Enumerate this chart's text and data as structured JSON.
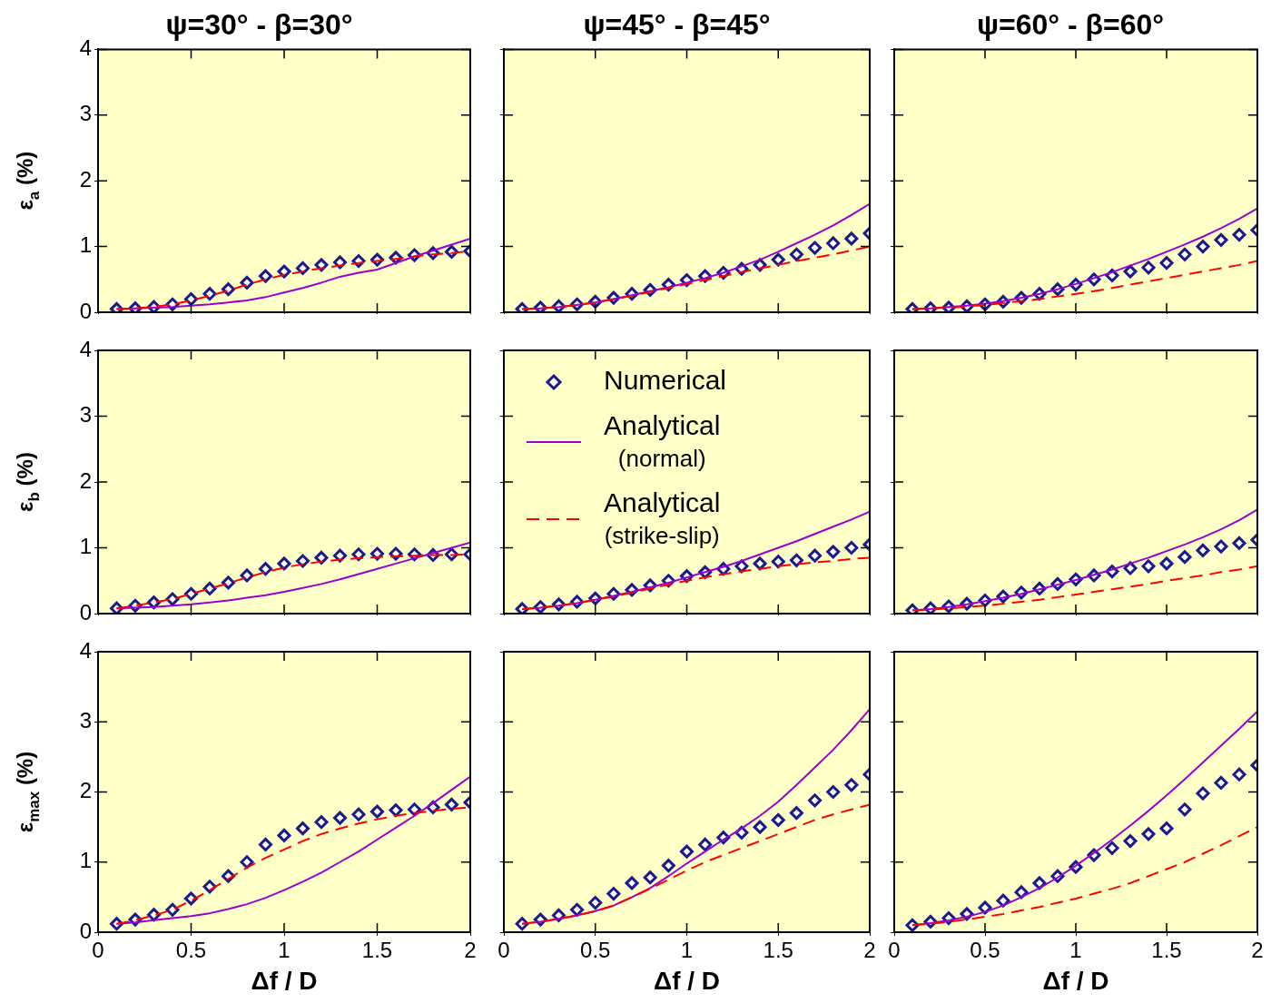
{
  "chart_data": [
    {
      "type": "line",
      "title": "ψ=30° - β=30°",
      "ylabel": "ε$_{a}$ (%)",
      "xlim": [
        0,
        2
      ],
      "xticks": [
        0,
        0.5,
        1,
        1.5,
        2
      ],
      "ylim": [
        0,
        4
      ],
      "yticks": [
        0,
        1,
        2,
        3,
        4
      ],
      "tick_labels": "y",
      "grid": false,
      "legend": false,
      "x": [
        0.1,
        0.2,
        0.3,
        0.4,
        0.5,
        0.6,
        0.7,
        0.8,
        0.9,
        1.0,
        1.1,
        1.2,
        1.3,
        1.4,
        1.5,
        1.6,
        1.7,
        1.8,
        1.9,
        2.0
      ],
      "series": [
        {
          "type": "scatter",
          "marker": "diamond",
          "color": "#1a1a8c",
          "values": [
            0.05,
            0.06,
            0.08,
            0.12,
            0.2,
            0.28,
            0.35,
            0.45,
            0.55,
            0.62,
            0.67,
            0.72,
            0.76,
            0.78,
            0.8,
            0.83,
            0.87,
            0.9,
            0.92,
            0.93
          ]
        },
        {
          "type": "line",
          "marker": "none",
          "line_style": "solid",
          "color": "#9b00d3",
          "values": [
            0.05,
            0.06,
            0.07,
            0.08,
            0.1,
            0.12,
            0.15,
            0.18,
            0.23,
            0.3,
            0.37,
            0.45,
            0.54,
            0.6,
            0.65,
            0.75,
            0.85,
            0.94,
            1.03,
            1.12
          ]
        },
        {
          "type": "line",
          "marker": "none",
          "line_style": "dashed",
          "color": "#ff0000",
          "values": [
            0.05,
            0.06,
            0.08,
            0.12,
            0.18,
            0.25,
            0.33,
            0.42,
            0.5,
            0.57,
            0.62,
            0.67,
            0.71,
            0.75,
            0.78,
            0.81,
            0.85,
            0.88,
            0.9,
            0.93
          ]
        }
      ]
    },
    {
      "type": "line",
      "title": "ψ=45° - β=45°",
      "xlim": [
        0,
        2
      ],
      "xticks": [
        0,
        0.5,
        1,
        1.5,
        2
      ],
      "ylim": [
        0,
        4
      ],
      "yticks": [
        0,
        1,
        2,
        3,
        4
      ],
      "tick_labels": false,
      "grid": false,
      "legend": false,
      "x": [
        0.1,
        0.2,
        0.3,
        0.4,
        0.5,
        0.6,
        0.7,
        0.8,
        0.9,
        1.0,
        1.1,
        1.2,
        1.3,
        1.4,
        1.5,
        1.6,
        1.7,
        1.8,
        1.9,
        2.0
      ],
      "series": [
        {
          "type": "scatter",
          "marker": "diamond",
          "color": "#1a1a8c",
          "values": [
            0.05,
            0.07,
            0.09,
            0.12,
            0.16,
            0.22,
            0.28,
            0.34,
            0.42,
            0.49,
            0.55,
            0.6,
            0.66,
            0.72,
            0.8,
            0.88,
            0.98,
            1.05,
            1.12,
            1.2
          ]
        },
        {
          "type": "line",
          "marker": "none",
          "line_style": "solid",
          "color": "#9b00d3",
          "values": [
            0.05,
            0.06,
            0.08,
            0.11,
            0.15,
            0.2,
            0.26,
            0.32,
            0.38,
            0.45,
            0.52,
            0.6,
            0.7,
            0.8,
            0.92,
            1.05,
            1.18,
            1.32,
            1.48,
            1.65
          ]
        },
        {
          "type": "line",
          "marker": "none",
          "line_style": "dashed",
          "color": "#ff0000",
          "values": [
            0.05,
            0.06,
            0.08,
            0.11,
            0.15,
            0.2,
            0.25,
            0.31,
            0.37,
            0.43,
            0.49,
            0.55,
            0.61,
            0.67,
            0.72,
            0.78,
            0.83,
            0.88,
            0.94,
            1.0
          ]
        }
      ]
    },
    {
      "type": "line",
      "title": "ψ=60° - β=60°",
      "xlim": [
        0,
        2
      ],
      "xticks": [
        0,
        0.5,
        1,
        1.5,
        2
      ],
      "ylim": [
        0,
        4
      ],
      "yticks": [
        0,
        1,
        2,
        3,
        4
      ],
      "tick_labels": false,
      "grid": false,
      "legend": false,
      "x": [
        0.1,
        0.2,
        0.3,
        0.4,
        0.5,
        0.6,
        0.7,
        0.8,
        0.9,
        1.0,
        1.1,
        1.2,
        1.3,
        1.4,
        1.5,
        1.6,
        1.7,
        1.8,
        1.9,
        2.0
      ],
      "series": [
        {
          "type": "scatter",
          "marker": "diamond",
          "color": "#1a1a8c",
          "values": [
            0.05,
            0.06,
            0.07,
            0.09,
            0.12,
            0.16,
            0.22,
            0.28,
            0.35,
            0.42,
            0.5,
            0.56,
            0.62,
            0.68,
            0.75,
            0.88,
            1.0,
            1.1,
            1.18,
            1.25
          ]
        },
        {
          "type": "line",
          "marker": "none",
          "line_style": "solid",
          "color": "#9b00d3",
          "values": [
            0.05,
            0.06,
            0.08,
            0.1,
            0.13,
            0.17,
            0.22,
            0.28,
            0.35,
            0.43,
            0.52,
            0.61,
            0.71,
            0.81,
            0.92,
            1.03,
            1.15,
            1.28,
            1.42,
            1.58
          ]
        },
        {
          "type": "line",
          "marker": "none",
          "line_style": "dashed",
          "color": "#ff0000",
          "values": [
            0.05,
            0.06,
            0.07,
            0.09,
            0.11,
            0.14,
            0.17,
            0.2,
            0.24,
            0.28,
            0.32,
            0.37,
            0.42,
            0.47,
            0.52,
            0.57,
            0.62,
            0.67,
            0.72,
            0.78
          ]
        }
      ]
    },
    {
      "type": "line",
      "ylabel": "ε$_{b}$ (%)",
      "xlim": [
        0,
        2
      ],
      "xticks": [
        0,
        0.5,
        1,
        1.5,
        2
      ],
      "ylim": [
        0,
        4
      ],
      "yticks": [
        0,
        1,
        2,
        3,
        4
      ],
      "tick_labels": "y",
      "grid": false,
      "legend": false,
      "x": [
        0.1,
        0.2,
        0.3,
        0.4,
        0.5,
        0.6,
        0.7,
        0.8,
        0.9,
        1.0,
        1.1,
        1.2,
        1.3,
        1.4,
        1.5,
        1.6,
        1.7,
        1.8,
        1.9,
        2.0
      ],
      "series": [
        {
          "type": "scatter",
          "marker": "diamond",
          "color": "#1a1a8c",
          "values": [
            0.08,
            0.12,
            0.17,
            0.22,
            0.3,
            0.38,
            0.47,
            0.58,
            0.68,
            0.76,
            0.8,
            0.85,
            0.88,
            0.9,
            0.91,
            0.91,
            0.9,
            0.89,
            0.9,
            0.9
          ]
        },
        {
          "type": "line",
          "marker": "none",
          "line_style": "solid",
          "color": "#9b00d3",
          "values": [
            0.08,
            0.09,
            0.1,
            0.12,
            0.14,
            0.17,
            0.2,
            0.24,
            0.28,
            0.33,
            0.39,
            0.45,
            0.52,
            0.6,
            0.68,
            0.76,
            0.84,
            0.92,
            1.0,
            1.08
          ]
        },
        {
          "type": "line",
          "marker": "none",
          "line_style": "dashed",
          "color": "#ff0000",
          "values": [
            0.08,
            0.12,
            0.17,
            0.22,
            0.3,
            0.38,
            0.46,
            0.55,
            0.63,
            0.7,
            0.75,
            0.79,
            0.82,
            0.84,
            0.86,
            0.87,
            0.88,
            0.89,
            0.89,
            0.9
          ]
        }
      ]
    },
    {
      "type": "line",
      "xlim": [
        0,
        2
      ],
      "xticks": [
        0,
        0.5,
        1,
        1.5,
        2
      ],
      "ylim": [
        0,
        4
      ],
      "yticks": [
        0,
        1,
        2,
        3,
        4
      ],
      "tick_labels": false,
      "grid": false,
      "legend": "top",
      "x": [
        0.1,
        0.2,
        0.3,
        0.4,
        0.5,
        0.6,
        0.7,
        0.8,
        0.9,
        1.0,
        1.1,
        1.2,
        1.3,
        1.4,
        1.5,
        1.6,
        1.7,
        1.8,
        1.9,
        2.0
      ],
      "series": [
        {
          "type": "scatter",
          "name": "Numerical",
          "marker": "diamond",
          "color": "#1a1a8c",
          "values": [
            0.07,
            0.1,
            0.14,
            0.18,
            0.23,
            0.3,
            0.36,
            0.43,
            0.5,
            0.57,
            0.63,
            0.68,
            0.72,
            0.76,
            0.79,
            0.81,
            0.88,
            0.94,
            1.0,
            1.05
          ]
        },
        {
          "type": "line",
          "name": "Analytical (normal)",
          "marker": "none",
          "line_style": "solid",
          "color": "#9b00d3",
          "values": [
            0.07,
            0.09,
            0.12,
            0.16,
            0.21,
            0.27,
            0.33,
            0.4,
            0.47,
            0.55,
            0.63,
            0.71,
            0.8,
            0.9,
            1.0,
            1.1,
            1.21,
            1.32,
            1.43,
            1.55
          ]
        },
        {
          "type": "line",
          "name": "Analytical (strike-slip)",
          "marker": "none",
          "line_style": "dashed",
          "color": "#ff0000",
          "values": [
            0.07,
            0.09,
            0.12,
            0.16,
            0.21,
            0.26,
            0.32,
            0.38,
            0.44,
            0.5,
            0.55,
            0.6,
            0.64,
            0.68,
            0.72,
            0.75,
            0.78,
            0.8,
            0.83,
            0.85
          ]
        }
      ]
    },
    {
      "type": "line",
      "xlim": [
        0,
        2
      ],
      "xticks": [
        0,
        0.5,
        1,
        1.5,
        2
      ],
      "ylim": [
        0,
        4
      ],
      "yticks": [
        0,
        1,
        2,
        3,
        4
      ],
      "tick_labels": false,
      "grid": false,
      "legend": false,
      "x": [
        0.1,
        0.2,
        0.3,
        0.4,
        0.5,
        0.6,
        0.7,
        0.8,
        0.9,
        1.0,
        1.1,
        1.2,
        1.3,
        1.4,
        1.5,
        1.6,
        1.7,
        1.8,
        1.9,
        2.0
      ],
      "series": [
        {
          "type": "scatter",
          "marker": "diamond",
          "color": "#1a1a8c",
          "values": [
            0.05,
            0.08,
            0.11,
            0.15,
            0.2,
            0.26,
            0.32,
            0.38,
            0.45,
            0.52,
            0.58,
            0.64,
            0.69,
            0.72,
            0.76,
            0.86,
            0.96,
            1.02,
            1.07,
            1.12
          ]
        },
        {
          "type": "line",
          "marker": "none",
          "line_style": "solid",
          "color": "#9b00d3",
          "values": [
            0.05,
            0.07,
            0.1,
            0.14,
            0.19,
            0.24,
            0.3,
            0.37,
            0.44,
            0.51,
            0.59,
            0.67,
            0.76,
            0.85,
            0.95,
            1.05,
            1.16,
            1.28,
            1.42,
            1.58
          ]
        },
        {
          "type": "line",
          "marker": "none",
          "line_style": "dashed",
          "color": "#ff0000",
          "values": [
            0.05,
            0.06,
            0.08,
            0.1,
            0.12,
            0.15,
            0.18,
            0.21,
            0.25,
            0.29,
            0.33,
            0.37,
            0.41,
            0.45,
            0.5,
            0.54,
            0.58,
            0.63,
            0.67,
            0.72
          ]
        }
      ]
    },
    {
      "type": "line",
      "ylabel": "ε$_{max}$ (%)",
      "xlabel": "Δf / D",
      "xlim": [
        0,
        2
      ],
      "xticks": [
        0,
        0.5,
        1,
        1.5,
        2
      ],
      "ylim": [
        0,
        4
      ],
      "yticks": [
        0,
        1,
        2,
        3,
        4
      ],
      "grid": false,
      "legend": false,
      "x": [
        0.1,
        0.2,
        0.3,
        0.4,
        0.5,
        0.6,
        0.7,
        0.8,
        0.9,
        1.0,
        1.1,
        1.2,
        1.3,
        1.4,
        1.5,
        1.6,
        1.7,
        1.8,
        1.9,
        2.0
      ],
      "series": [
        {
          "type": "scatter",
          "marker": "diamond",
          "color": "#1a1a8c",
          "values": [
            0.12,
            0.18,
            0.25,
            0.32,
            0.48,
            0.65,
            0.8,
            1.0,
            1.25,
            1.38,
            1.48,
            1.57,
            1.63,
            1.68,
            1.72,
            1.74,
            1.75,
            1.78,
            1.82,
            1.85
          ]
        },
        {
          "type": "line",
          "marker": "none",
          "line_style": "solid",
          "color": "#9b00d3",
          "values": [
            0.12,
            0.14,
            0.17,
            0.2,
            0.23,
            0.27,
            0.33,
            0.4,
            0.49,
            0.6,
            0.72,
            0.85,
            1.0,
            1.15,
            1.32,
            1.49,
            1.66,
            1.84,
            2.03,
            2.22
          ]
        },
        {
          "type": "line",
          "marker": "none",
          "line_style": "dashed",
          "color": "#ff0000",
          "values": [
            0.12,
            0.17,
            0.24,
            0.32,
            0.45,
            0.6,
            0.76,
            0.92,
            1.06,
            1.18,
            1.3,
            1.4,
            1.48,
            1.55,
            1.61,
            1.66,
            1.7,
            1.73,
            1.76,
            1.78
          ]
        }
      ]
    },
    {
      "type": "line",
      "xlabel": "Δf / D",
      "xlim": [
        0,
        2
      ],
      "xticks": [
        0,
        0.5,
        1,
        1.5,
        2
      ],
      "ylim": [
        0,
        4
      ],
      "yticks": [
        0,
        1,
        2,
        3,
        4
      ],
      "tick_labels": "x",
      "grid": false,
      "legend": false,
      "x": [
        0.1,
        0.2,
        0.3,
        0.4,
        0.5,
        0.6,
        0.7,
        0.8,
        0.9,
        1.0,
        1.1,
        1.2,
        1.3,
        1.4,
        1.5,
        1.6,
        1.7,
        1.8,
        1.9,
        2.0
      ],
      "series": [
        {
          "type": "scatter",
          "marker": "diamond",
          "color": "#1a1a8c",
          "values": [
            0.12,
            0.18,
            0.24,
            0.32,
            0.42,
            0.55,
            0.7,
            0.78,
            0.95,
            1.15,
            1.25,
            1.35,
            1.42,
            1.5,
            1.6,
            1.7,
            1.88,
            2.0,
            2.1,
            2.25
          ]
        },
        {
          "type": "line",
          "marker": "none",
          "line_style": "solid",
          "color": "#9b00d3",
          "values": [
            0.12,
            0.15,
            0.19,
            0.24,
            0.3,
            0.38,
            0.5,
            0.63,
            0.8,
            0.98,
            1.15,
            1.32,
            1.48,
            1.66,
            1.86,
            2.1,
            2.35,
            2.6,
            2.88,
            3.18
          ]
        },
        {
          "type": "line",
          "marker": "none",
          "line_style": "dashed",
          "color": "#ff0000",
          "values": [
            0.12,
            0.15,
            0.19,
            0.24,
            0.3,
            0.38,
            0.5,
            0.62,
            0.75,
            0.88,
            1.0,
            1.1,
            1.2,
            1.3,
            1.4,
            1.5,
            1.6,
            1.68,
            1.75,
            1.82
          ]
        }
      ]
    },
    {
      "type": "line",
      "xlabel": "Δf / D",
      "xlim": [
        0,
        2
      ],
      "xticks": [
        0,
        0.5,
        1,
        1.5,
        2
      ],
      "ylim": [
        0,
        4
      ],
      "yticks": [
        0,
        1,
        2,
        3,
        4
      ],
      "tick_labels": "x",
      "grid": false,
      "legend": false,
      "x": [
        0.1,
        0.2,
        0.3,
        0.4,
        0.5,
        0.6,
        0.7,
        0.8,
        0.9,
        1.0,
        1.1,
        1.2,
        1.3,
        1.4,
        1.5,
        1.6,
        1.7,
        1.8,
        1.9,
        2.0
      ],
      "series": [
        {
          "type": "scatter",
          "marker": "diamond",
          "color": "#1a1a8c",
          "values": [
            0.1,
            0.15,
            0.2,
            0.26,
            0.35,
            0.45,
            0.57,
            0.7,
            0.8,
            0.93,
            1.1,
            1.2,
            1.3,
            1.4,
            1.48,
            1.75,
            1.98,
            2.13,
            2.25,
            2.38
          ]
        },
        {
          "type": "line",
          "marker": "none",
          "line_style": "solid",
          "color": "#9b00d3",
          "values": [
            0.1,
            0.13,
            0.17,
            0.22,
            0.29,
            0.38,
            0.5,
            0.63,
            0.78,
            0.95,
            1.13,
            1.32,
            1.52,
            1.73,
            1.95,
            2.18,
            2.42,
            2.66,
            2.9,
            3.15
          ]
        },
        {
          "type": "line",
          "marker": "none",
          "line_style": "dashed",
          "color": "#ff0000",
          "values": [
            0.1,
            0.12,
            0.15,
            0.18,
            0.22,
            0.26,
            0.31,
            0.36,
            0.42,
            0.48,
            0.55,
            0.62,
            0.7,
            0.8,
            0.9,
            1.0,
            1.12,
            1.24,
            1.37,
            1.5
          ]
        }
      ]
    }
  ]
}
